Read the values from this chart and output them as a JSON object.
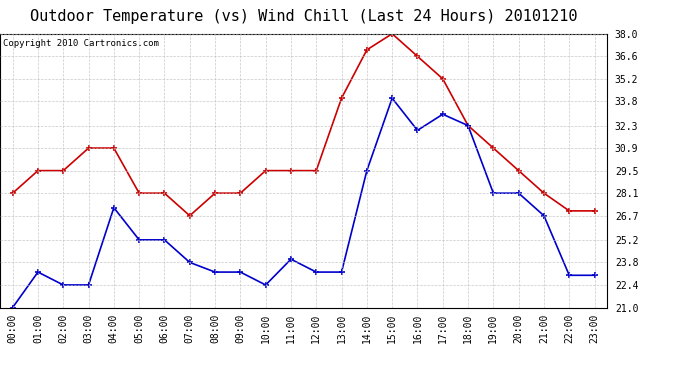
{
  "title": "Outdoor Temperature (vs) Wind Chill (Last 24 Hours) 20101210",
  "copyright": "Copyright 2010 Cartronics.com",
  "hours": [
    "00:00",
    "01:00",
    "02:00",
    "03:00",
    "04:00",
    "05:00",
    "06:00",
    "07:00",
    "08:00",
    "09:00",
    "10:00",
    "11:00",
    "12:00",
    "13:00",
    "14:00",
    "15:00",
    "16:00",
    "17:00",
    "18:00",
    "19:00",
    "20:00",
    "21:00",
    "22:00",
    "23:00"
  ],
  "red_data": [
    28.1,
    29.5,
    29.5,
    30.9,
    30.9,
    28.1,
    28.1,
    26.7,
    28.1,
    28.1,
    29.5,
    29.5,
    29.5,
    34.0,
    37.0,
    38.0,
    36.6,
    35.2,
    32.3,
    30.9,
    29.5,
    28.1,
    27.0,
    27.0
  ],
  "blue_data": [
    21.0,
    23.2,
    22.4,
    22.4,
    27.2,
    25.2,
    25.2,
    23.8,
    23.2,
    23.2,
    22.4,
    24.0,
    23.2,
    23.2,
    29.5,
    34.0,
    32.0,
    33.0,
    32.3,
    28.1,
    28.1,
    26.7,
    23.0,
    23.0
  ],
  "red_color": "#cc0000",
  "blue_color": "#0000cc",
  "ylim": [
    21.0,
    38.0
  ],
  "yticks": [
    21.0,
    22.4,
    23.8,
    25.2,
    26.7,
    28.1,
    29.5,
    30.9,
    32.3,
    33.8,
    35.2,
    36.6,
    38.0
  ],
  "grid_color": "#bbbbbb",
  "title_fontsize": 11,
  "copyright_fontsize": 6.5,
  "tick_fontsize": 7
}
